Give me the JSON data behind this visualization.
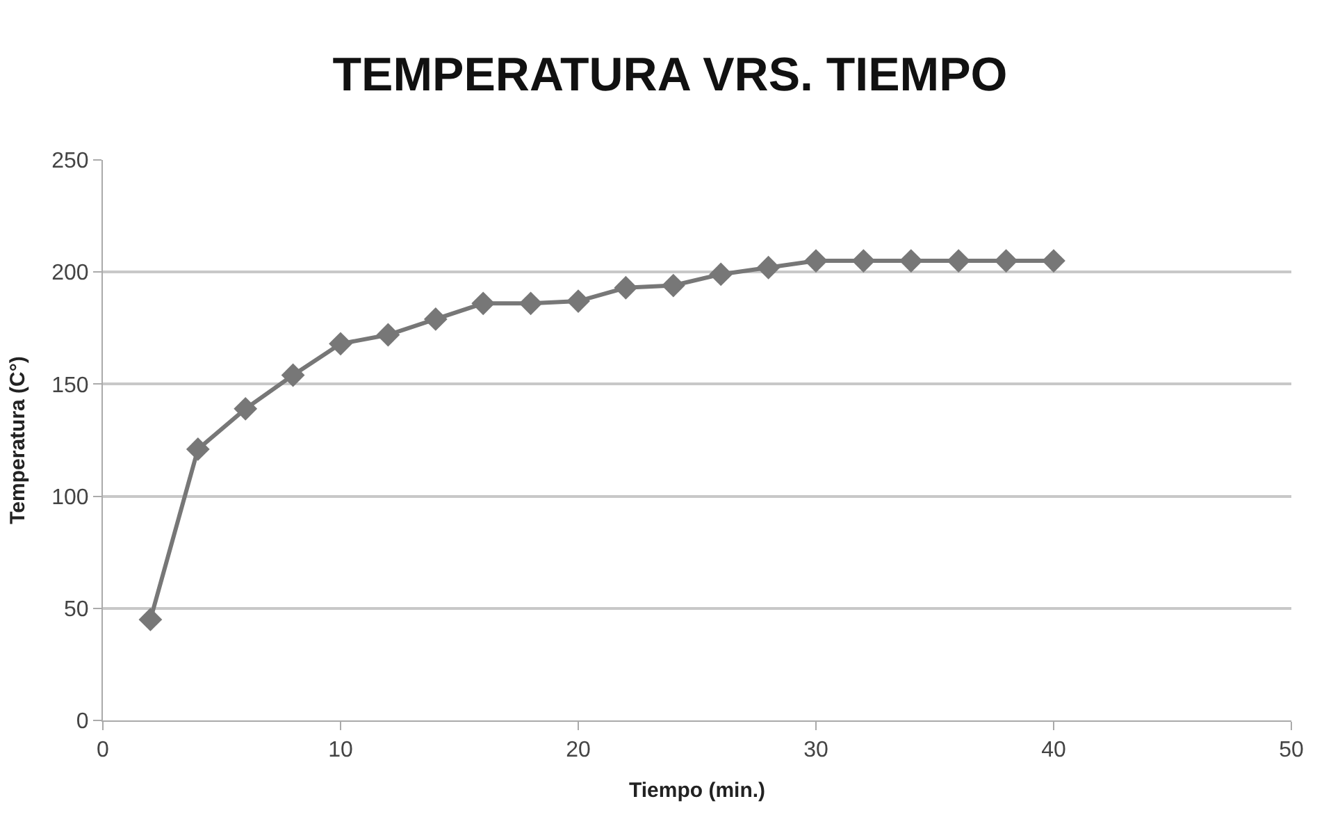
{
  "chart_data": {
    "type": "line",
    "title": "TEMPERATURA VRS. TIEMPO",
    "xlabel": "Tiempo (min.)",
    "ylabel": "Temperatura (C°)",
    "x": [
      2,
      4,
      6,
      8,
      10,
      12,
      14,
      16,
      18,
      20,
      22,
      24,
      26,
      28,
      30,
      32,
      34,
      36,
      38,
      40
    ],
    "series": [
      {
        "color": "#777777",
        "values": [
          45,
          121,
          139,
          154,
          168,
          172,
          179,
          186,
          186,
          187,
          193,
          194,
          199,
          202,
          205,
          205,
          205,
          205,
          205,
          205
        ]
      }
    ],
    "xlim": [
      0,
      50
    ],
    "xticks": [
      0,
      10,
      20,
      30,
      40,
      50
    ],
    "ylim": [
      0,
      250
    ],
    "yticks": [
      0,
      50,
      100,
      150,
      200,
      250
    ],
    "grid": "y",
    "marker": "diamond",
    "line_style": "solid"
  }
}
